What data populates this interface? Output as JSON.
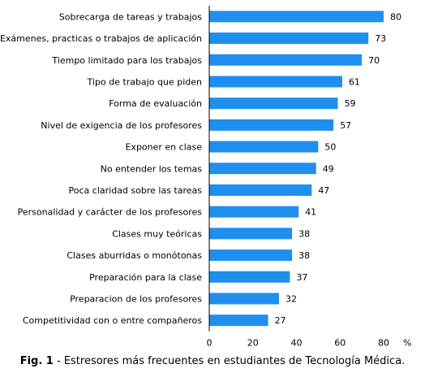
{
  "chart_data": {
    "type": "bar",
    "orientation": "horizontal",
    "categories": [
      "Sobrecarga de tareas y trabajos",
      "Exámenes, practicas o trabajos de aplicación",
      "Tiempo limitado para los trabajos",
      "Tipo de trabajo que piden",
      "Forma de evaluación",
      "Nivel de exigencia de los profesores",
      "Exponer en clase",
      "No entender los temas",
      "Poca claridad sobre las tareas",
      "Personalidad y carácter de los profesores",
      "Clases muy teóricas",
      "Clases aburridas o monótonas",
      "Preparación para la clase",
      "Preparacion de los profesores",
      "Competitividad con o entre compañeros"
    ],
    "values": [
      80,
      73,
      70,
      61,
      59,
      57,
      50,
      49,
      47,
      41,
      38,
      38,
      37,
      32,
      27
    ],
    "xlim": [
      0,
      80
    ],
    "xticks": [
      "0",
      "20",
      "40",
      "60",
      "80"
    ],
    "xlabel": "%",
    "bar_color": "#1f8fef",
    "grid": false
  },
  "caption": {
    "label": "Fig. 1",
    "text": " - Estresores más frecuentes en estudiantes de Tecnología Médica."
  }
}
